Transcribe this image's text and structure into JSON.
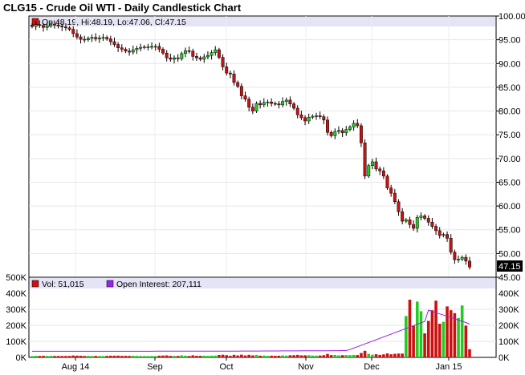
{
  "title": "CLG15 - Crude Oil WTI - Daily Candlestick Chart",
  "price_legend": "Op:48.19, Hi:48.19, Lo:47.06, Cl:47.15",
  "last_price": "47.15",
  "volume_legend": {
    "vol": "Vol: 51,015",
    "oi": "Open Interest: 207,111"
  },
  "colors": {
    "up": "#22cc22",
    "down": "#cc1111",
    "oi_line": "#9922ee",
    "legend_band": "#e4e4f6",
    "highlight_bar": "#1a237e"
  },
  "chart_data": [
    {
      "type": "candlestick",
      "title": "CLG15 - Crude Oil WTI - Daily Candlestick Chart",
      "y_ticks": [
        "100.00",
        "95.00",
        "90.00",
        "85.00",
        "80.00",
        "75.00",
        "70.00",
        "65.00",
        "60.00",
        "55.00",
        "50.00",
        "45.00"
      ],
      "ylim": [
        45,
        100
      ],
      "x_ticks": [
        "Aug 14",
        "Sep",
        "Oct",
        "Nov",
        "Dec",
        "Jan 15"
      ],
      "closes": [
        97.8,
        98.2,
        98.0,
        97.6,
        97.9,
        98.3,
        98.1,
        97.9,
        97.7,
        97.5,
        97.2,
        96.3,
        95.6,
        95.1,
        95.0,
        95.3,
        95.5,
        95.2,
        95.4,
        95.5,
        95.2,
        94.6,
        94.0,
        93.3,
        93.0,
        92.6,
        92.4,
        92.9,
        93.2,
        93.4,
        93.5,
        93.5,
        93.6,
        93.6,
        93.0,
        92.2,
        91.2,
        90.9,
        91.2,
        91.0,
        92.1,
        92.7,
        92.6,
        91.5,
        91.2,
        90.9,
        91.4,
        91.7,
        92.3,
        92.9,
        91.3,
        89.3,
        88.0,
        87.8,
        86.0,
        85.2,
        83.2,
        82.5,
        80.8,
        80.0,
        81.6,
        81.3,
        81.8,
        81.9,
        81.6,
        81.5,
        81.3,
        82.0,
        82.3,
        81.5,
        80.6,
        79.2,
        78.6,
        77.9,
        78.7,
        78.9,
        79.0,
        78.8,
        78.1,
        75.5,
        74.8,
        75.7,
        75.9,
        75.4,
        76.1,
        76.6,
        77.4,
        76.9,
        73.3,
        66.3,
        68.5,
        69.3,
        67.8,
        67.4,
        66.3,
        63.8,
        62.7,
        60.9,
        58.8,
        56.8,
        57.1,
        56.1,
        55.3,
        57.6,
        57.9,
        57.4,
        56.6,
        55.7,
        54.8,
        53.8,
        54.0,
        53.2,
        50.3,
        48.7,
        48.8,
        49.2,
        48.4,
        47.15
      ],
      "volume": {
        "y_ticks": [
          "500K",
          "400K",
          "300K",
          "200K",
          "100K",
          "0K"
        ],
        "ylim": [
          0,
          500000
        ],
        "series": [
          {
            "name": "Vol: 51,015"
          },
          {
            "name": "Open Interest: 207,111"
          }
        ]
      }
    }
  ]
}
